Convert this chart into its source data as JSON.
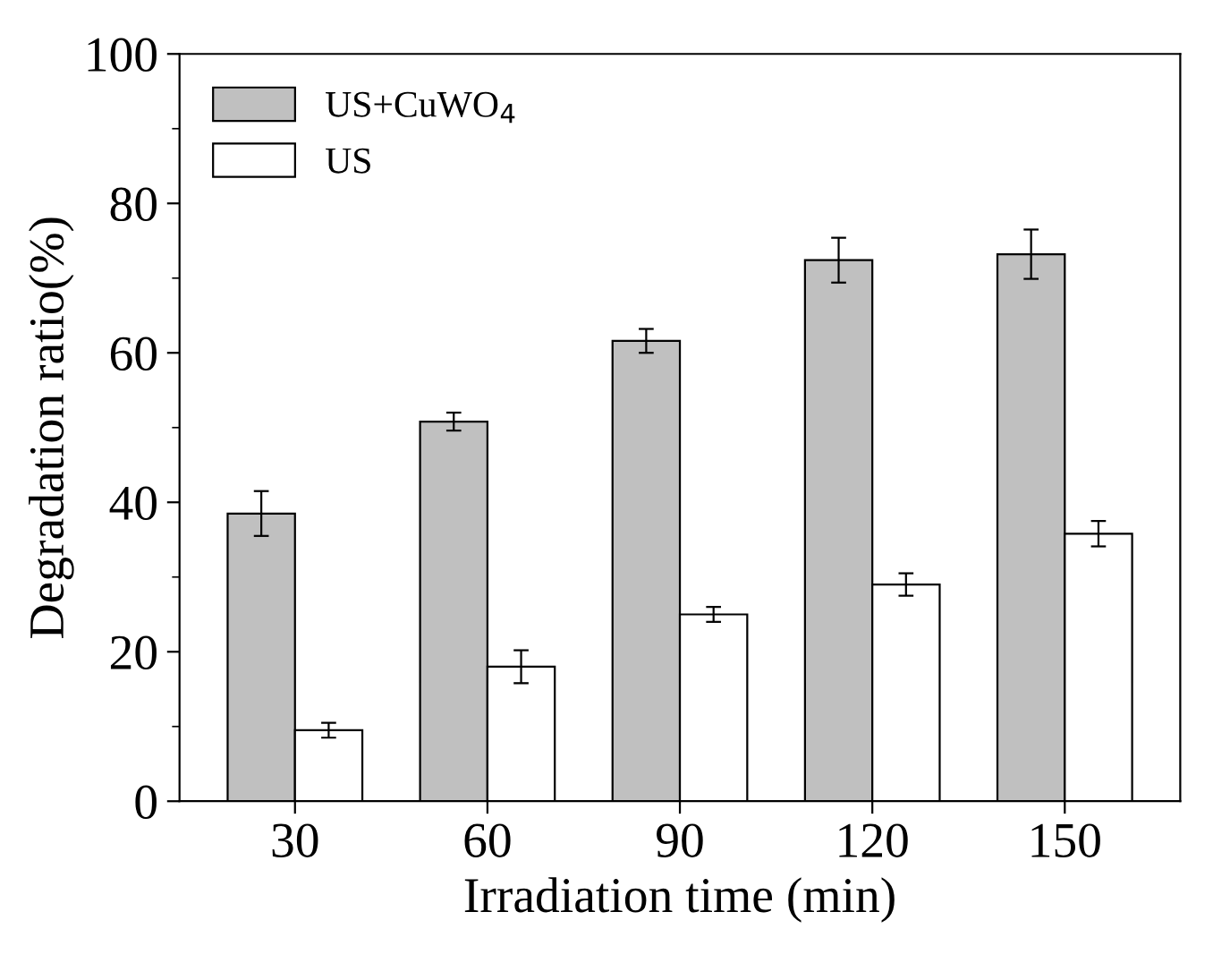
{
  "chart_data": {
    "type": "bar",
    "xlabel": "Irradiation time (min)",
    "ylabel": "Degradation ratio(%)",
    "categories": [
      "30",
      "60",
      "90",
      "120",
      "150"
    ],
    "series": [
      {
        "name": "US+CuWO$_{4}$",
        "color": "#c0c0c0",
        "values": [
          38.5,
          50.8,
          61.6,
          72.4,
          73.2
        ],
        "errors": [
          3.0,
          1.2,
          1.6,
          3.0,
          3.3
        ]
      },
      {
        "name": "US",
        "color": "#ffffff",
        "values": [
          9.5,
          18.0,
          25.0,
          29.0,
          35.8
        ],
        "errors": [
          1.0,
          2.2,
          1.0,
          1.5,
          1.7
        ]
      }
    ],
    "ylim": [
      0,
      100
    ],
    "yticks": [
      0,
      20,
      40,
      60,
      80,
      100
    ],
    "legend": "top left",
    "grid": false
  }
}
